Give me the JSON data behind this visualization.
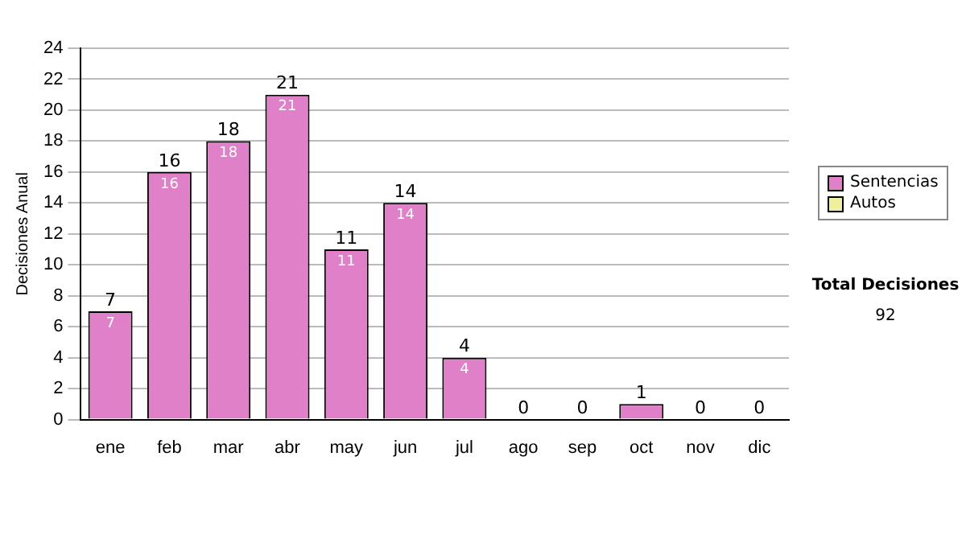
{
  "chart_data": {
    "type": "bar",
    "ylabel": "Decisiones Anual",
    "categories": [
      "ene",
      "feb",
      "mar",
      "abr",
      "may",
      "jun",
      "jul",
      "ago",
      "sep",
      "oct",
      "nov",
      "dic"
    ],
    "series": [
      {
        "name": "Sentencias",
        "color": "#e080c8",
        "values": [
          7,
          16,
          18,
          21,
          11,
          14,
          4,
          0,
          0,
          1,
          0,
          0
        ],
        "value_labels": [
          "7",
          "16",
          "18",
          "21",
          "11",
          "14",
          "4",
          null,
          null,
          null,
          null,
          null
        ]
      },
      {
        "name": "Autos",
        "color": "#eef0a0",
        "values": [
          0,
          0,
          0,
          0,
          0,
          0,
          0,
          0,
          0,
          0,
          0,
          0
        ]
      }
    ],
    "stacked": true,
    "totals": [
      "7",
      "16",
      "18",
      "21",
      "11",
      "14",
      "4",
      "0",
      "0",
      "1",
      "0",
      "0"
    ],
    "ylim": [
      0,
      24
    ],
    "yticks": [
      0,
      2,
      4,
      6,
      8,
      10,
      12,
      14,
      16,
      18,
      20,
      22,
      24
    ],
    "grid": "y",
    "legend": "right",
    "annotations": [
      "Total Decisiones",
      "92"
    ]
  }
}
